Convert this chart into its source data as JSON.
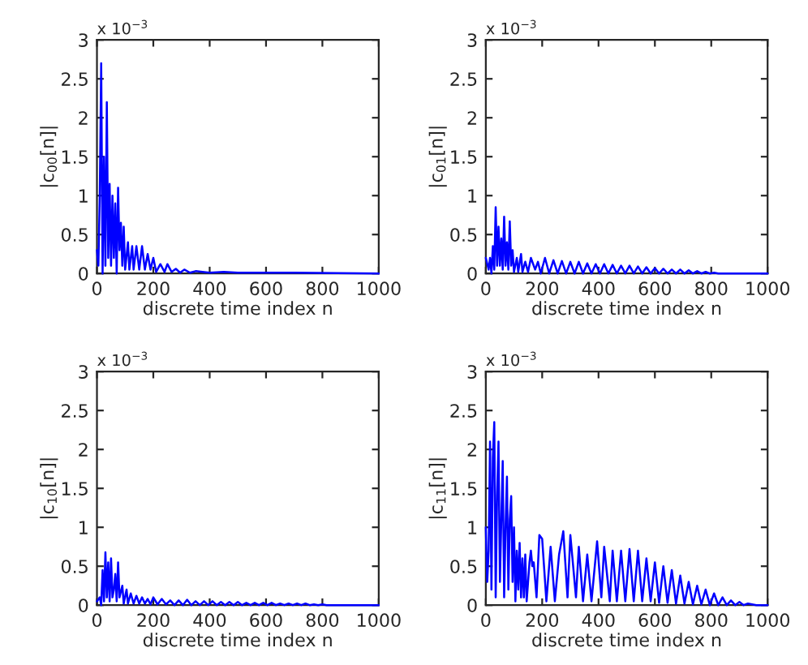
{
  "chart_data": [
    {
      "type": "line",
      "ylabel": "|c$_{00}$[n]|",
      "xlabel": "discrete time index n",
      "annotations": [
        "x 10$^{−3}$"
      ],
      "xlim": [
        0,
        1000
      ],
      "ylim": [
        0,
        3
      ],
      "xticks": [
        0,
        200,
        400,
        600,
        800,
        1000
      ],
      "yticks": [
        0,
        0.5,
        1,
        1.5,
        2,
        2.5,
        3
      ],
      "grid": false,
      "legend": false,
      "series": [
        {
          "color": "#0000ff",
          "x": [
            0,
            5,
            10,
            15,
            20,
            25,
            30,
            35,
            40,
            45,
            50,
            55,
            60,
            65,
            70,
            75,
            80,
            85,
            90,
            95,
            100,
            110,
            115,
            125,
            130,
            140,
            150,
            160,
            170,
            180,
            190,
            200,
            210,
            225,
            240,
            250,
            265,
            280,
            295,
            310,
            330,
            350,
            400,
            450,
            500,
            600,
            700,
            1000
          ],
          "values": [
            0.3,
            0.1,
            1.0,
            2.7,
            0,
            1.5,
            0.1,
            2.2,
            0.2,
            1.15,
            0.1,
            1.0,
            0.2,
            0.9,
            0,
            1.1,
            0.3,
            0.65,
            0.1,
            0.6,
            0.05,
            0.4,
            0.05,
            0.35,
            0.05,
            0.35,
            0.05,
            0.35,
            0.05,
            0.25,
            0.05,
            0.2,
            0.02,
            0.12,
            0.02,
            0.12,
            0.02,
            0.06,
            0.01,
            0.05,
            0.01,
            0.03,
            0.01,
            0.02,
            0.01,
            0.01,
            0.01,
            0
          ]
        }
      ]
    },
    {
      "type": "line",
      "ylabel": "|c$_{01}$[n]|",
      "xlabel": "discrete time index n",
      "annotations": [
        "x 10$^{−3}$"
      ],
      "xlim": [
        0,
        1000
      ],
      "ylim": [
        0,
        3
      ],
      "xticks": [
        0,
        200,
        400,
        600,
        800,
        1000
      ],
      "yticks": [
        0,
        0.5,
        1,
        1.5,
        2,
        2.5,
        3
      ],
      "grid": false,
      "legend": false,
      "series": [
        {
          "color": "#0000ff",
          "x": [
            0,
            10,
            15,
            20,
            25,
            30,
            35,
            40,
            45,
            50,
            55,
            60,
            65,
            70,
            75,
            80,
            85,
            90,
            95,
            100,
            110,
            115,
            125,
            130,
            140,
            150,
            160,
            175,
            185,
            195,
            210,
            225,
            240,
            255,
            270,
            285,
            300,
            315,
            330,
            345,
            360,
            375,
            390,
            405,
            420,
            435,
            450,
            465,
            480,
            495,
            510,
            525,
            540,
            555,
            570,
            585,
            600,
            615,
            630,
            645,
            660,
            675,
            690,
            705,
            720,
            735,
            750,
            765,
            780,
            795,
            810,
            825,
            1000
          ],
          "values": [
            0.2,
            0.05,
            0.2,
            0,
            0.35,
            0.05,
            0.85,
            0.1,
            0.6,
            0.1,
            0.45,
            0.05,
            0.73,
            0.1,
            0.4,
            0.05,
            0.67,
            0.1,
            0.3,
            0.02,
            0.2,
            0.02,
            0.25,
            0.02,
            0.15,
            0.02,
            0.2,
            0.05,
            0.15,
            0,
            0.2,
            0,
            0.17,
            0,
            0.16,
            0,
            0.15,
            0,
            0.15,
            0,
            0.13,
            0,
            0.12,
            0,
            0.12,
            0,
            0.11,
            0,
            0.1,
            0,
            0.1,
            0,
            0.09,
            0,
            0.08,
            0,
            0.07,
            0,
            0.06,
            0,
            0.05,
            0,
            0.05,
            0,
            0.04,
            0,
            0.03,
            0,
            0.02,
            0,
            0.01,
            0,
            0
          ]
        }
      ]
    },
    {
      "type": "line",
      "ylabel": "|c$_{10}$[n]|",
      "xlabel": "discrete time index n",
      "annotations": [
        "x 10$^{−3}$"
      ],
      "xlim": [
        0,
        1000
      ],
      "ylim": [
        0,
        3
      ],
      "xticks": [
        0,
        200,
        400,
        600,
        800,
        1000
      ],
      "yticks": [
        0,
        0.5,
        1,
        1.5,
        2,
        2.5,
        3
      ],
      "grid": false,
      "legend": false,
      "series": [
        {
          "color": "#0000ff",
          "x": [
            0,
            10,
            15,
            20,
            25,
            30,
            35,
            40,
            45,
            50,
            55,
            60,
            65,
            70,
            75,
            80,
            90,
            95,
            105,
            110,
            120,
            130,
            140,
            150,
            160,
            170,
            180,
            190,
            200,
            215,
            230,
            245,
            260,
            275,
            290,
            305,
            320,
            335,
            350,
            365,
            380,
            395,
            410,
            425,
            440,
            455,
            470,
            485,
            500,
            515,
            530,
            545,
            560,
            575,
            590,
            605,
            620,
            635,
            650,
            665,
            680,
            695,
            710,
            725,
            740,
            755,
            770,
            785,
            800,
            815,
            1000
          ],
          "values": [
            0.05,
            0.1,
            0,
            0.45,
            0.05,
            0.68,
            0.1,
            0.55,
            0.05,
            0.6,
            0.1,
            0.2,
            0.4,
            0.05,
            0.55,
            0.1,
            0.25,
            0.02,
            0.2,
            0.02,
            0.15,
            0.02,
            0.12,
            0.02,
            0.1,
            0.02,
            0.08,
            0.01,
            0.1,
            0.01,
            0.08,
            0.01,
            0.06,
            0,
            0.06,
            0,
            0.07,
            0,
            0.05,
            0,
            0.05,
            0,
            0.05,
            0,
            0.04,
            0,
            0.04,
            0,
            0.04,
            0,
            0.03,
            0,
            0.03,
            0,
            0.03,
            0,
            0.03,
            0,
            0.02,
            0,
            0.02,
            0,
            0.02,
            0,
            0.02,
            0,
            0.01,
            0,
            0.01,
            0,
            0
          ]
        }
      ]
    },
    {
      "type": "line",
      "ylabel": "|c$_{11}$[n]|",
      "xlabel": "discrete time index n",
      "annotations": [
        "x 10$^{−3}$"
      ],
      "xlim": [
        0,
        1000
      ],
      "ylim": [
        0,
        3
      ],
      "xticks": [
        0,
        200,
        400,
        600,
        800,
        1000
      ],
      "yticks": [
        0,
        0.5,
        1,
        1.5,
        2,
        2.5,
        3
      ],
      "grid": false,
      "legend": false,
      "series": [
        {
          "color": "#0000ff",
          "x": [
            0,
            5,
            10,
            15,
            20,
            25,
            30,
            35,
            40,
            45,
            50,
            55,
            60,
            65,
            70,
            75,
            80,
            85,
            90,
            95,
            100,
            105,
            110,
            115,
            120,
            125,
            130,
            135,
            140,
            145,
            155,
            160,
            165,
            170,
            180,
            190,
            200,
            215,
            230,
            245,
            260,
            275,
            290,
            300,
            320,
            330,
            345,
            360,
            375,
            395,
            410,
            420,
            440,
            450,
            465,
            480,
            495,
            510,
            525,
            540,
            555,
            570,
            585,
            600,
            615,
            630,
            645,
            660,
            675,
            690,
            705,
            720,
            735,
            750,
            765,
            780,
            795,
            810,
            825,
            840,
            855,
            870,
            885,
            900,
            915,
            930,
            960,
            1000
          ],
          "values": [
            1.0,
            0.3,
            0.7,
            2.1,
            0.2,
            1.9,
            2.35,
            0.1,
            1.4,
            2.1,
            0.3,
            1.1,
            1.85,
            0.1,
            1.0,
            1.65,
            0.2,
            1.1,
            1.4,
            0.3,
            1.0,
            0.05,
            0.7,
            0.2,
            0.8,
            0.1,
            0.6,
            0.1,
            0.65,
            0.05,
            0.55,
            0.7,
            0.5,
            0.55,
            0.1,
            0.9,
            0.85,
            0.05,
            0.75,
            0.05,
            0.65,
            0.95,
            0.1,
            0.9,
            0.1,
            0.75,
            0.05,
            0.65,
            0.05,
            0.82,
            0.1,
            0.75,
            0.05,
            0.7,
            0.05,
            0.7,
            0.05,
            0.72,
            0.05,
            0.7,
            0.05,
            0.6,
            0.05,
            0.55,
            0.03,
            0.5,
            0.03,
            0.45,
            0.02,
            0.38,
            0.02,
            0.3,
            0.01,
            0.25,
            0.01,
            0.2,
            0,
            0.15,
            0,
            0.1,
            0,
            0.06,
            0,
            0.04,
            0,
            0.02,
            0,
            0
          ]
        }
      ]
    }
  ]
}
